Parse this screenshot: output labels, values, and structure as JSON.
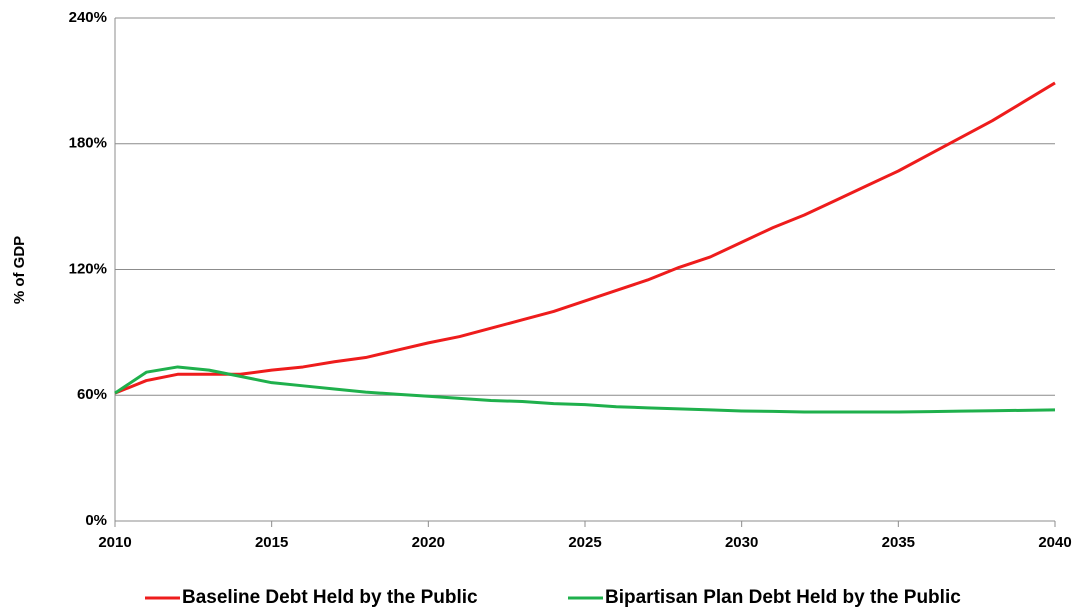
{
  "chart_data": {
    "type": "line",
    "y_label": "% of GDP",
    "x": [
      2010,
      2011,
      2012,
      2013,
      2014,
      2015,
      2016,
      2017,
      2018,
      2019,
      2020,
      2021,
      2022,
      2023,
      2024,
      2025,
      2026,
      2027,
      2028,
      2029,
      2030,
      2031,
      2032,
      2033,
      2034,
      2035,
      2036,
      2037,
      2038,
      2039,
      2040
    ],
    "series": [
      {
        "name": "Baseline Debt Held by the Public",
        "color": "#ee1c1c",
        "values": [
          61,
          67,
          70,
          70,
          70,
          72,
          73.5,
          76,
          78,
          81.5,
          85,
          88,
          92,
          96,
          100,
          105,
          110,
          115,
          121,
          126,
          133,
          140,
          146,
          153,
          160,
          167,
          175,
          183,
          191,
          200,
          209
        ]
      },
      {
        "name": "Bipartisan Plan Debt Held by the Public",
        "color": "#1fb04c",
        "values": [
          61,
          71,
          73.5,
          72,
          69,
          66,
          64.5,
          63,
          61.5,
          60.5,
          59.5,
          58.5,
          57.5,
          57,
          56,
          55.5,
          54.5,
          54,
          53.5,
          53,
          52.5,
          52.3,
          52,
          52,
          52,
          52,
          52.2,
          52.4,
          52.6,
          52.8,
          53
        ]
      }
    ],
    "xlim": [
      2010,
      2040
    ],
    "xticks": [
      2010,
      2015,
      2020,
      2025,
      2030,
      2035,
      2040
    ],
    "ylim": [
      0,
      240
    ],
    "yticks": [
      {
        "value": 0,
        "label": "0%"
      },
      {
        "value": 60,
        "label": "60%"
      },
      {
        "value": 120,
        "label": "120%"
      },
      {
        "value": 180,
        "label": "180%"
      },
      {
        "value": 240,
        "label": "240%"
      }
    ],
    "grid": true,
    "legend": "bottom"
  }
}
